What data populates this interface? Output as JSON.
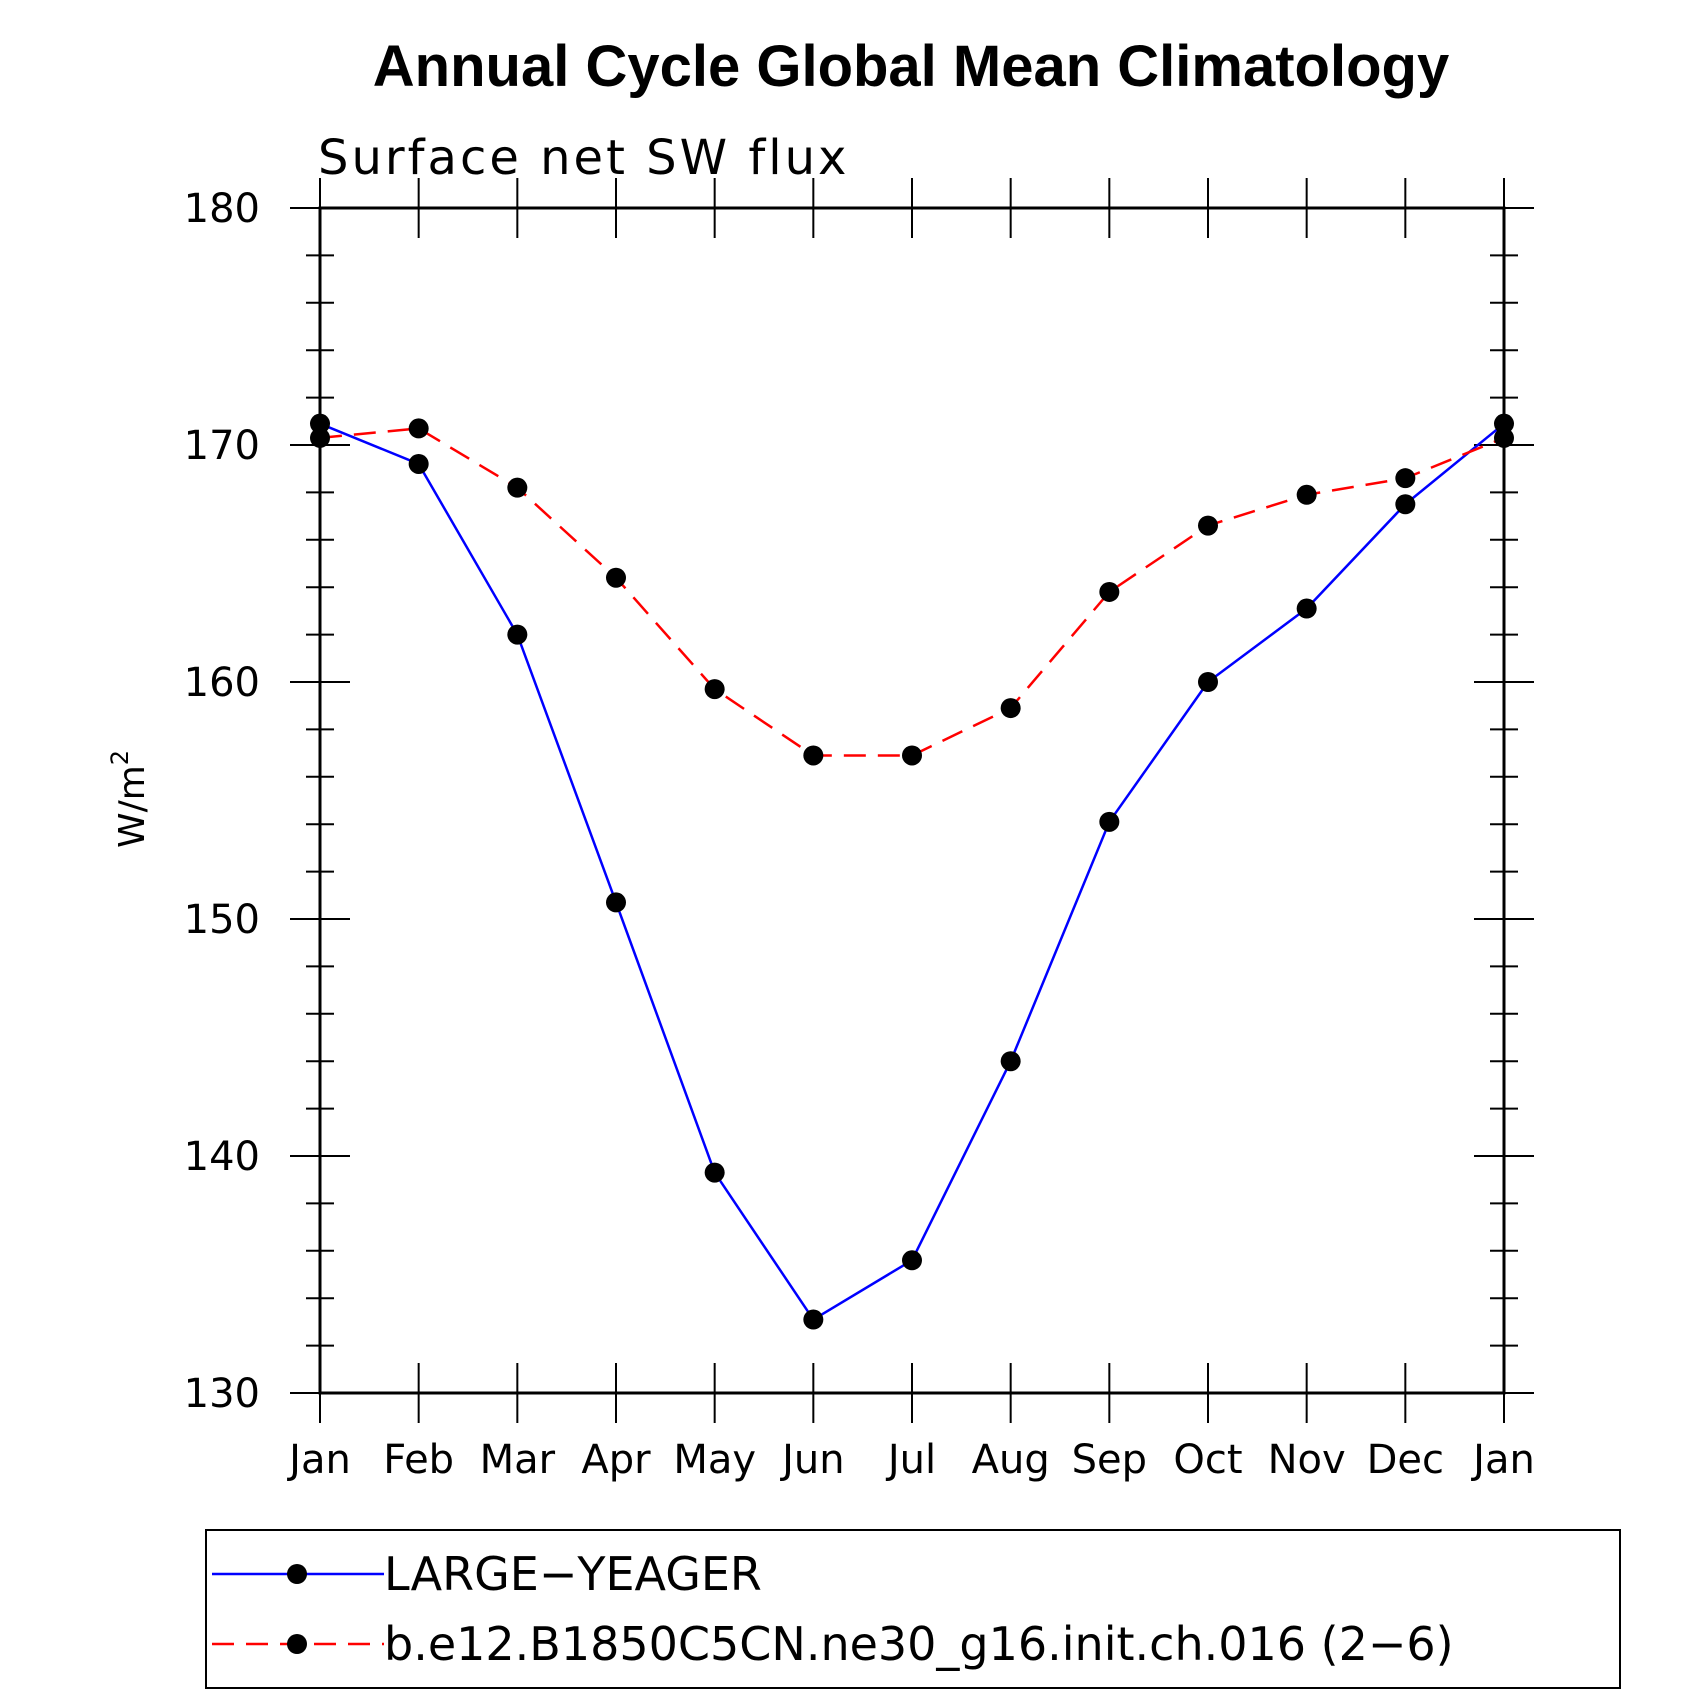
{
  "colors": {
    "series1": "#0000ff",
    "series2": "#ff0000",
    "marker": "#000000",
    "axis": "#000000"
  },
  "chart_data": {
    "type": "line",
    "title": "Annual Cycle Global Mean Climatology",
    "subtitle": "Surface net SW flux",
    "ylabel": "W/m",
    "ylabel_superscript": "2",
    "ylim": [
      130,
      180
    ],
    "yticks": [
      130,
      140,
      150,
      160,
      170,
      180
    ],
    "categories": [
      "Jan",
      "Feb",
      "Mar",
      "Apr",
      "May",
      "Jun",
      "Jul",
      "Aug",
      "Sep",
      "Oct",
      "Nov",
      "Dec",
      "Jan"
    ],
    "series": [
      {
        "name": "LARGE−YEAGER",
        "style": "solid",
        "color": "#0000ff",
        "values": [
          170.9,
          169.2,
          162.0,
          150.7,
          139.3,
          133.1,
          135.6,
          144.0,
          154.1,
          160.0,
          163.1,
          167.5,
          170.9
        ]
      },
      {
        "name": "b.e12.B1850C5CN.ne30_g16.init.ch.016 (2−6)",
        "style": "dashed",
        "color": "#ff0000",
        "values": [
          170.3,
          170.7,
          168.2,
          164.4,
          159.7,
          156.9,
          156.9,
          158.9,
          163.8,
          166.6,
          167.9,
          168.6,
          170.3
        ]
      }
    ]
  }
}
